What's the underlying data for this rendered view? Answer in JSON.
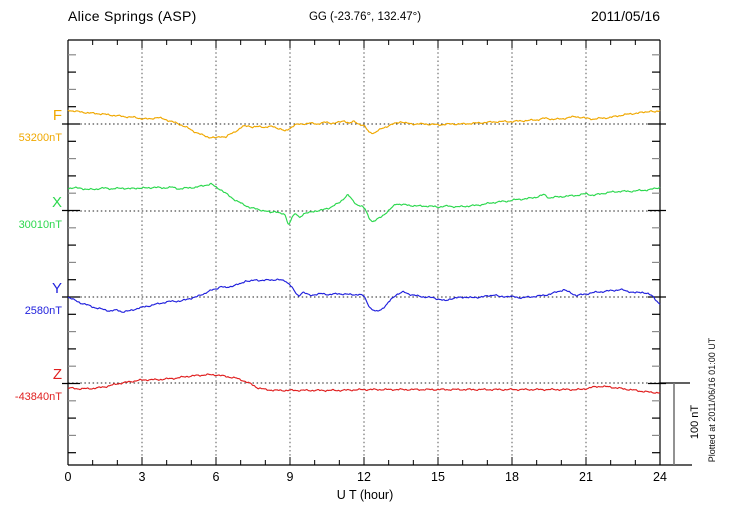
{
  "header": {
    "station": "Alice Springs (ASP)",
    "coordinates": "GG (-23.76°, 132.47°)",
    "date": "2011/05/16"
  },
  "x_axis": {
    "label": "U T (hour)"
  },
  "scale_bar": {
    "label": "100 nT"
  },
  "footer": {
    "plotted_at": "Plotted at 2011/06/16 01:00 UT"
  },
  "chart_data": {
    "type": "line",
    "title": "Alice Springs (ASP)",
    "subtitle": "GG (-23.76°, 132.47°)",
    "date": "2011/05/16",
    "xlabel": "U T (hour)",
    "x_range_hours": [
      0,
      24
    ],
    "x_ticks": [
      0,
      3,
      6,
      9,
      12,
      15,
      18,
      21,
      24
    ],
    "grid": {
      "vertical_dotted_every_hours": 3,
      "dotted_baseline_per_trace": true
    },
    "scale_bar_nT": 100,
    "legend_position": "left-of-axis",
    "series": [
      {
        "name": "F",
        "baseline_nT": 53200,
        "baseline_label": "53200nT",
        "color": "#f0a800",
        "units": "nT deviation from displayed baseline",
        "points": [
          [
            0,
            17
          ],
          [
            0.3,
            15.5
          ],
          [
            0.7,
            14
          ],
          [
            1,
            13
          ],
          [
            1.3,
            12.5
          ],
          [
            1.7,
            11
          ],
          [
            2,
            10
          ],
          [
            2.3,
            9
          ],
          [
            2.7,
            8
          ],
          [
            3,
            6.5
          ],
          [
            3.3,
            6
          ],
          [
            3.6,
            8
          ],
          [
            3.9,
            6
          ],
          [
            4.2,
            3
          ],
          [
            4.5,
            0
          ],
          [
            4.8,
            -4
          ],
          [
            5.1,
            -9
          ],
          [
            5.4,
            -13
          ],
          [
            5.7,
            -16
          ],
          [
            6,
            -17
          ],
          [
            6.2,
            -15
          ],
          [
            6.4,
            -16
          ],
          [
            6.6,
            -12
          ],
          [
            6.9,
            -7
          ],
          [
            7.1,
            -3
          ],
          [
            7.3,
            -2
          ],
          [
            7.5,
            -4
          ],
          [
            7.8,
            -3
          ],
          [
            8,
            -4
          ],
          [
            8.3,
            -3
          ],
          [
            8.6,
            -6
          ],
          [
            8.8,
            -9
          ],
          [
            9,
            -5
          ],
          [
            9.2,
            -1
          ],
          [
            9.5,
            0
          ],
          [
            9.8,
            1
          ],
          [
            10.1,
            0
          ],
          [
            10.4,
            2
          ],
          [
            10.7,
            1
          ],
          [
            11,
            2
          ],
          [
            11.2,
            4
          ],
          [
            11.4,
            1
          ],
          [
            11.6,
            3
          ],
          [
            11.8,
            0
          ],
          [
            12,
            -2
          ],
          [
            12.2,
            -10
          ],
          [
            12.4,
            -11
          ],
          [
            12.7,
            -6
          ],
          [
            13,
            -2
          ],
          [
            13.3,
            1
          ],
          [
            13.5,
            3
          ],
          [
            13.7,
            1
          ],
          [
            14,
            0
          ],
          [
            14.5,
            0
          ],
          [
            15,
            -1
          ],
          [
            15.5,
            0
          ],
          [
            16,
            0
          ],
          [
            16.5,
            1
          ],
          [
            17,
            2
          ],
          [
            17.5,
            3
          ],
          [
            18,
            3
          ],
          [
            18.5,
            4
          ],
          [
            19,
            5
          ],
          [
            19.3,
            7
          ],
          [
            19.6,
            6
          ],
          [
            20,
            6
          ],
          [
            20.3,
            8
          ],
          [
            20.6,
            9
          ],
          [
            21,
            7
          ],
          [
            21.3,
            6
          ],
          [
            21.6,
            7
          ],
          [
            22,
            8
          ],
          [
            22.3,
            10
          ],
          [
            22.7,
            12
          ],
          [
            23,
            13
          ],
          [
            23.3,
            14
          ],
          [
            23.6,
            16
          ],
          [
            23.8,
            14
          ],
          [
            24,
            17
          ]
        ]
      },
      {
        "name": "X",
        "baseline_nT": 30010,
        "baseline_label": "30010nT",
        "color": "#2cd84e",
        "units": "nT deviation from displayed baseline",
        "points": [
          [
            0,
            28
          ],
          [
            0.5,
            28
          ],
          [
            0.8,
            26
          ],
          [
            1.2,
            27
          ],
          [
            1.5,
            28
          ],
          [
            1.8,
            27
          ],
          [
            2.2,
            28
          ],
          [
            2.5,
            27
          ],
          [
            2.8,
            28
          ],
          [
            3.2,
            28
          ],
          [
            3.5,
            29
          ],
          [
            3.8,
            28
          ],
          [
            4.2,
            29
          ],
          [
            4.5,
            27
          ],
          [
            4.8,
            28
          ],
          [
            5.2,
            29
          ],
          [
            5.5,
            31
          ],
          [
            5.8,
            33
          ],
          [
            6,
            29
          ],
          [
            6.2,
            26
          ],
          [
            6.5,
            19
          ],
          [
            6.8,
            13
          ],
          [
            7.1,
            8
          ],
          [
            7.4,
            4
          ],
          [
            7.7,
            2
          ],
          [
            8,
            0
          ],
          [
            8.2,
            -2
          ],
          [
            8.4,
            0
          ],
          [
            8.6,
            -3
          ],
          [
            8.8,
            -5
          ],
          [
            8.95,
            -17
          ],
          [
            9.1,
            -6
          ],
          [
            9.25,
            -4
          ],
          [
            9.4,
            -8
          ],
          [
            9.55,
            -3
          ],
          [
            9.8,
            -2
          ],
          [
            10,
            0
          ],
          [
            10.3,
            1
          ],
          [
            10.6,
            4
          ],
          [
            11,
            10
          ],
          [
            11.2,
            16
          ],
          [
            11.35,
            20
          ],
          [
            11.5,
            14
          ],
          [
            11.7,
            8
          ],
          [
            11.9,
            6
          ],
          [
            12.05,
            2
          ],
          [
            12.2,
            -8
          ],
          [
            12.35,
            -13
          ],
          [
            12.5,
            -11
          ],
          [
            12.7,
            -7
          ],
          [
            12.9,
            -2
          ],
          [
            13.1,
            3
          ],
          [
            13.3,
            9
          ],
          [
            13.5,
            8
          ],
          [
            13.8,
            7
          ],
          [
            14.2,
            6
          ],
          [
            14.6,
            6
          ],
          [
            15,
            5
          ],
          [
            15.4,
            6
          ],
          [
            15.8,
            5
          ],
          [
            16.2,
            6
          ],
          [
            16.6,
            7
          ],
          [
            17,
            9
          ],
          [
            17.4,
            11
          ],
          [
            17.8,
            12
          ],
          [
            18.2,
            14
          ],
          [
            18.6,
            15
          ],
          [
            19,
            17
          ],
          [
            19.3,
            20
          ],
          [
            19.5,
            16
          ],
          [
            19.8,
            17
          ],
          [
            20.2,
            18
          ],
          [
            20.6,
            19
          ],
          [
            21,
            21
          ],
          [
            21.3,
            19
          ],
          [
            21.6,
            21
          ],
          [
            22,
            23
          ],
          [
            22.4,
            24
          ],
          [
            22.8,
            24
          ],
          [
            23.2,
            25
          ],
          [
            23.6,
            26
          ],
          [
            24,
            29
          ]
        ]
      },
      {
        "name": "Y",
        "baseline_nT": 2580,
        "baseline_label": "2580nT",
        "color": "#2222dd",
        "units": "nT deviation from displayed baseline",
        "points": [
          [
            0,
            0
          ],
          [
            0.2,
            -3
          ],
          [
            0.5,
            -7
          ],
          [
            0.8,
            -10
          ],
          [
            1.1,
            -13
          ],
          [
            1.4,
            -15
          ],
          [
            1.7,
            -17
          ],
          [
            2,
            -16
          ],
          [
            2.2,
            -18
          ],
          [
            2.5,
            -17
          ],
          [
            2.8,
            -14
          ],
          [
            3.1,
            -12
          ],
          [
            3.4,
            -10
          ],
          [
            3.7,
            -8
          ],
          [
            4,
            -6
          ],
          [
            4.3,
            -5
          ],
          [
            4.6,
            -5
          ],
          [
            4.9,
            -2
          ],
          [
            5.2,
            0
          ],
          [
            5.5,
            4
          ],
          [
            5.8,
            8
          ],
          [
            6,
            10
          ],
          [
            6.2,
            13
          ],
          [
            6.4,
            11
          ],
          [
            6.7,
            14
          ],
          [
            7,
            16
          ],
          [
            7.2,
            20
          ],
          [
            7.4,
            19
          ],
          [
            7.6,
            21
          ],
          [
            7.9,
            20
          ],
          [
            8.2,
            21
          ],
          [
            8.5,
            21
          ],
          [
            8.8,
            20
          ],
          [
            9,
            15
          ],
          [
            9.2,
            6
          ],
          [
            9.35,
            1
          ],
          [
            9.5,
            6
          ],
          [
            9.65,
            4
          ],
          [
            9.8,
            2
          ],
          [
            10,
            3
          ],
          [
            10.3,
            4
          ],
          [
            10.6,
            3
          ],
          [
            11,
            4
          ],
          [
            11.4,
            3
          ],
          [
            11.8,
            3
          ],
          [
            12,
            1
          ],
          [
            12.15,
            -8
          ],
          [
            12.3,
            -15
          ],
          [
            12.5,
            -18
          ],
          [
            12.7,
            -15
          ],
          [
            12.9,
            -10
          ],
          [
            13.1,
            -3
          ],
          [
            13.3,
            3
          ],
          [
            13.6,
            6
          ],
          [
            13.9,
            3
          ],
          [
            14.2,
            1
          ],
          [
            14.5,
            0
          ],
          [
            14.8,
            -1
          ],
          [
            15.1,
            -3
          ],
          [
            15.3,
            -5
          ],
          [
            15.5,
            -2
          ],
          [
            15.8,
            -1
          ],
          [
            16.1,
            0
          ],
          [
            16.4,
            -1
          ],
          [
            16.7,
            0
          ],
          [
            17,
            1
          ],
          [
            17.3,
            3
          ],
          [
            17.5,
            0
          ],
          [
            17.8,
            1
          ],
          [
            18.1,
            0
          ],
          [
            18.4,
            -1
          ],
          [
            18.7,
            0
          ],
          [
            19,
            1
          ],
          [
            19.3,
            2
          ],
          [
            19.6,
            4
          ],
          [
            19.9,
            7
          ],
          [
            20.1,
            9
          ],
          [
            20.3,
            6
          ],
          [
            20.6,
            2
          ],
          [
            20.9,
            3
          ],
          [
            21.2,
            5
          ],
          [
            21.5,
            6
          ],
          [
            21.8,
            7
          ],
          [
            22.1,
            8
          ],
          [
            22.4,
            9
          ],
          [
            22.7,
            7
          ],
          [
            23,
            5
          ],
          [
            23.3,
            6
          ],
          [
            23.5,
            4
          ],
          [
            23.7,
            1
          ],
          [
            23.85,
            -4
          ],
          [
            24,
            -9
          ]
        ]
      },
      {
        "name": "Z",
        "baseline_nT": -43840,
        "baseline_label": "-43840nT",
        "color": "#e02020",
        "units": "nT deviation from displayed baseline",
        "points": [
          [
            0,
            -6
          ],
          [
            0.4,
            -7
          ],
          [
            0.8,
            -7
          ],
          [
            1.2,
            -6
          ],
          [
            1.6,
            -4
          ],
          [
            2,
            -1
          ],
          [
            2.4,
            1
          ],
          [
            2.8,
            3
          ],
          [
            3.2,
            4
          ],
          [
            3.6,
            4
          ],
          [
            4,
            5
          ],
          [
            4.4,
            6
          ],
          [
            4.8,
            8
          ],
          [
            5.2,
            9
          ],
          [
            5.6,
            10
          ],
          [
            6,
            10
          ],
          [
            6.4,
            8
          ],
          [
            6.8,
            6
          ],
          [
            7.1,
            3
          ],
          [
            7.4,
            -1
          ],
          [
            7.7,
            -6
          ],
          [
            8,
            -8
          ],
          [
            8.4,
            -9
          ],
          [
            9,
            -9
          ],
          [
            10,
            -9
          ],
          [
            11,
            -9
          ],
          [
            12,
            -8
          ],
          [
            13,
            -8
          ],
          [
            14,
            -8
          ],
          [
            15,
            -8
          ],
          [
            16,
            -8
          ],
          [
            17,
            -8
          ],
          [
            18,
            -8
          ],
          [
            19,
            -8
          ],
          [
            20,
            -8
          ],
          [
            20.8,
            -8
          ],
          [
            21.3,
            -5
          ],
          [
            21.6,
            -4
          ],
          [
            22,
            -5
          ],
          [
            22.5,
            -7
          ],
          [
            23,
            -9
          ],
          [
            23.5,
            -11
          ],
          [
            24,
            -12
          ]
        ]
      }
    ]
  }
}
